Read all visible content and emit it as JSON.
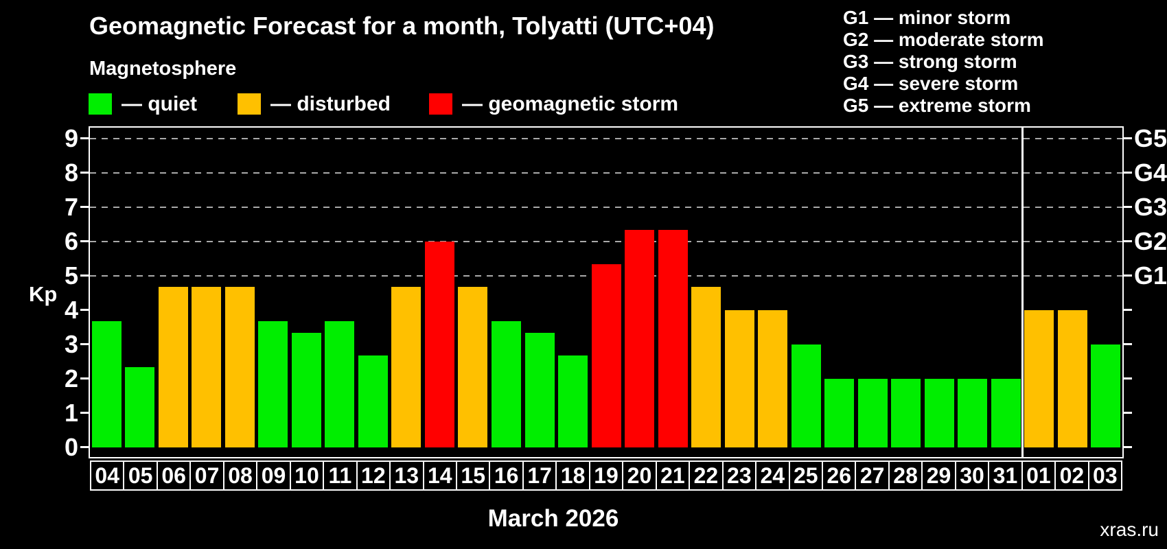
{
  "header": {
    "title": "Geomagnetic Forecast for a month, Tolyatti (UTC+04)",
    "subtitle": "Magnetosphere"
  },
  "legend": {
    "items": [
      {
        "status": "quiet",
        "label": "— quiet"
      },
      {
        "status": "disturbed",
        "label": "— disturbed"
      },
      {
        "status": "storm",
        "label": "— geomagnetic storm"
      }
    ]
  },
  "g_scale_legend": [
    "G1 — minor storm",
    "G2 — moderate storm",
    "G3 — strong storm",
    "G4 — severe storm",
    "G5 — extreme storm"
  ],
  "chart_data": {
    "type": "bar",
    "title": "Geomagnetic Forecast for a month, Tolyatti (UTC+04)",
    "ylabel": "Kp",
    "xlabel": "March 2026",
    "ylim": [
      0,
      9
    ],
    "grid": "dashed horizontal lines at Kp 5-9 only",
    "ytick_labels": [
      "0",
      "1",
      "2",
      "3",
      "4",
      "5",
      "6",
      "7",
      "8",
      "9"
    ],
    "g_levels": [
      {
        "kp": 5,
        "label": "G1"
      },
      {
        "kp": 6,
        "label": "G2"
      },
      {
        "kp": 7,
        "label": "G3"
      },
      {
        "kp": 8,
        "label": "G4"
      },
      {
        "kp": 9,
        "label": "G5"
      }
    ],
    "categories": [
      "04",
      "05",
      "06",
      "07",
      "08",
      "09",
      "10",
      "11",
      "12",
      "13",
      "14",
      "15",
      "16",
      "17",
      "18",
      "19",
      "20",
      "21",
      "22",
      "23",
      "24",
      "25",
      "26",
      "27",
      "28",
      "29",
      "30",
      "31",
      "01",
      "02",
      "03"
    ],
    "values": [
      3.67,
      2.33,
      4.67,
      4.67,
      4.67,
      3.67,
      3.33,
      3.67,
      2.67,
      4.67,
      6.0,
      4.67,
      3.67,
      3.33,
      2.67,
      5.33,
      6.33,
      6.33,
      4.67,
      4.0,
      4.0,
      3.0,
      2.0,
      2.0,
      2.0,
      2.0,
      2.0,
      2.0,
      4.0,
      4.0,
      3.0
    ],
    "statuses": [
      "quiet",
      "quiet",
      "disturbed",
      "disturbed",
      "disturbed",
      "quiet",
      "quiet",
      "quiet",
      "quiet",
      "disturbed",
      "storm",
      "disturbed",
      "quiet",
      "quiet",
      "quiet",
      "storm",
      "storm",
      "storm",
      "disturbed",
      "disturbed",
      "disturbed",
      "quiet",
      "quiet",
      "quiet",
      "quiet",
      "quiet",
      "quiet",
      "quiet",
      "disturbed",
      "disturbed",
      "quiet"
    ],
    "separator_after_index": 27,
    "legend_position": "top-left and top-right outside plot"
  },
  "colors": {
    "quiet": "#00ee00",
    "disturbed": "#ffc000",
    "storm": "#ff0000",
    "frame": "#ffffff",
    "grid": "#aaaaaa",
    "background": "#000000",
    "watermark": "#757575"
  },
  "watermark": "xras.ru"
}
